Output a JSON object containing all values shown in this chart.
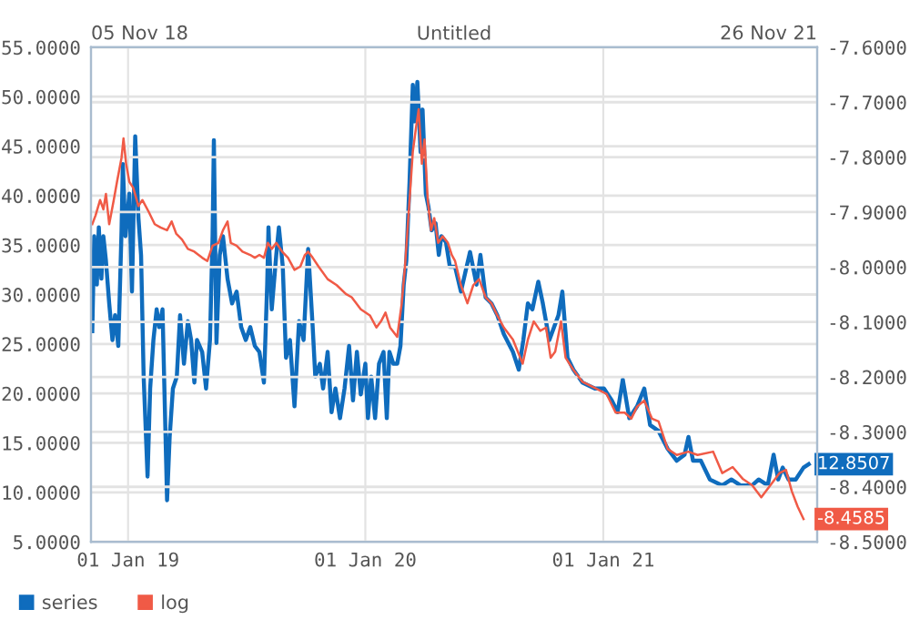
{
  "chart_data": {
    "type": "line",
    "title": "Untitled",
    "annotations": [
      "05 Nov 18",
      "26 Nov 21"
    ],
    "xlim": [
      "2018-11-05",
      "2021-11-26"
    ],
    "xticks": [
      {
        "value": "2019-01-01",
        "label": "01 Jan 19"
      },
      {
        "value": "2020-01-01",
        "label": "01 Jan 20"
      },
      {
        "value": "2021-01-01",
        "label": "01 Jan 21"
      }
    ],
    "ylim": [
      5,
      55
    ],
    "yticks": [
      {
        "value": 5,
        "label": "5.0000"
      },
      {
        "value": 10,
        "label": "10.0000"
      },
      {
        "value": 15,
        "label": "15.0000"
      },
      {
        "value": 20,
        "label": "20.0000"
      },
      {
        "value": 25,
        "label": "25.0000"
      },
      {
        "value": 30,
        "label": "30.0000"
      },
      {
        "value": 35,
        "label": "35.0000"
      },
      {
        "value": 40,
        "label": "40.0000"
      },
      {
        "value": 45,
        "label": "45.0000"
      },
      {
        "value": 50,
        "label": "50.0000"
      },
      {
        "value": 55,
        "label": "55.0000"
      }
    ],
    "y2lim": [
      -8.5,
      -7.6
    ],
    "y2ticks": [
      {
        "value": -8.5,
        "label": "-8.5000"
      },
      {
        "value": -8.4,
        "label": "-8.4000"
      },
      {
        "value": -8.3,
        "label": "-8.3000"
      },
      {
        "value": -8.2,
        "label": "-8.2000"
      },
      {
        "value": -8.1,
        "label": "-8.1000"
      },
      {
        "value": -8.0,
        "label": "-8.0000"
      },
      {
        "value": -7.9,
        "label": "-7.9000"
      },
      {
        "value": -7.8,
        "label": "-7.8000"
      },
      {
        "value": -7.7,
        "label": "-7.7000"
      },
      {
        "value": -7.6,
        "label": "-7.6000"
      }
    ],
    "grid": true,
    "legend": "bottom left",
    "marker": "none",
    "line_style": "solid",
    "series": [
      {
        "name": "series",
        "color": "#0f6cbd",
        "axis": "y",
        "x": [
          "2018-11-07",
          "2018-11-10",
          "2018-11-14",
          "2018-11-17",
          "2018-11-21",
          "2018-11-24",
          "2018-11-28",
          "2018-12-03",
          "2018-12-08",
          "2018-12-12",
          "2018-12-17",
          "2018-12-22",
          "2018-12-24",
          "2018-12-28",
          "2019-01-03",
          "2019-01-07",
          "2019-01-12",
          "2019-01-17",
          "2019-01-21",
          "2019-01-25",
          "2019-01-31",
          "2019-02-04",
          "2019-02-09",
          "2019-02-14",
          "2019-02-18",
          "2019-02-23",
          "2019-03-02",
          "2019-03-06",
          "2019-03-11",
          "2019-03-17",
          "2019-03-22",
          "2019-03-28",
          "2019-04-03",
          "2019-04-08",
          "2019-04-13",
          "2019-04-17",
          "2019-04-25",
          "2019-05-01",
          "2019-05-07",
          "2019-05-11",
          "2019-05-13",
          "2019-05-17",
          "2019-05-22",
          "2019-05-27",
          "2019-06-03",
          "2019-06-10",
          "2019-06-17",
          "2019-06-24",
          "2019-07-01",
          "2019-07-08",
          "2019-07-15",
          "2019-07-22",
          "2019-07-29",
          "2019-08-03",
          "2019-08-05",
          "2019-08-10",
          "2019-08-17",
          "2019-08-21",
          "2019-08-27",
          "2019-09-01",
          "2019-09-07",
          "2019-09-14",
          "2019-09-21",
          "2019-09-28",
          "2019-10-05",
          "2019-10-12",
          "2019-10-16",
          "2019-10-23",
          "2019-10-28",
          "2019-11-04",
          "2019-11-10",
          "2019-11-16",
          "2019-11-23",
          "2019-11-30",
          "2019-12-07",
          "2019-12-13",
          "2019-12-19",
          "2019-12-25",
          "2020-01-01",
          "2020-01-05",
          "2020-01-10",
          "2020-01-16",
          "2020-01-22",
          "2020-01-29",
          "2020-02-03",
          "2020-02-07",
          "2020-02-13",
          "2020-02-19",
          "2020-02-24",
          "2020-02-29",
          "2020-03-04",
          "2020-03-09",
          "2020-03-14",
          "2020-03-17",
          "2020-03-21",
          "2020-03-26",
          "2020-03-29",
          "2020-04-03",
          "2020-04-07",
          "2020-04-12",
          "2020-04-18",
          "2020-04-23",
          "2020-04-27",
          "2020-05-04",
          "2020-05-10",
          "2020-05-18",
          "2020-05-27",
          "2020-06-10",
          "2020-06-20",
          "2020-06-26",
          "2020-07-04",
          "2020-07-13",
          "2020-07-22",
          "2020-08-01",
          "2020-08-15",
          "2020-08-24",
          "2020-08-31",
          "2020-09-07",
          "2020-09-14",
          "2020-09-23",
          "2020-09-30",
          "2020-10-10",
          "2020-10-24",
          "2020-10-30",
          "2020-11-07",
          "2020-11-16",
          "2020-11-30",
          "2020-12-19",
          "2021-01-02",
          "2021-01-14",
          "2021-01-23",
          "2021-01-31",
          "2021-02-10",
          "2021-02-22",
          "2021-03-05",
          "2021-03-14",
          "2021-03-27",
          "2021-04-10",
          "2021-04-24",
          "2021-05-06",
          "2021-05-12",
          "2021-05-19",
          "2021-05-31",
          "2021-06-14",
          "2021-07-03",
          "2021-07-17",
          "2021-07-31",
          "2021-08-18",
          "2021-08-28",
          "2021-09-11",
          "2021-09-20",
          "2021-09-27",
          "2021-10-04",
          "2021-10-13",
          "2021-10-24",
          "2021-11-05",
          "2021-11-13"
        ],
        "values": [
          26.3,
          35.9,
          31,
          36.8,
          31.6,
          35.9,
          33.4,
          29.1,
          25.4,
          27.9,
          24.8,
          36.5,
          43.2,
          35.9,
          40.2,
          30.3,
          46,
          37.7,
          34,
          21.7,
          11.6,
          20.5,
          25.4,
          28.5,
          26.7,
          28.5,
          9.2,
          15.6,
          20.5,
          21.7,
          27.9,
          23,
          27.3,
          25.4,
          21.1,
          25.4,
          24.2,
          20.5,
          25.4,
          35.9,
          45.6,
          25.1,
          34,
          35.9,
          31.6,
          29.1,
          30.3,
          26.7,
          25.4,
          26.7,
          24.8,
          24.2,
          21.1,
          31,
          36.8,
          28.5,
          34,
          36.8,
          32.8,
          23.6,
          25.4,
          18.7,
          27.3,
          25.4,
          34.6,
          26.7,
          21.7,
          23,
          20.5,
          24.2,
          18.1,
          20.5,
          17.5,
          20.5,
          24.8,
          19.3,
          24.2,
          19.9,
          23,
          17.5,
          21.7,
          17.5,
          23,
          24.2,
          17.5,
          24.2,
          23,
          23,
          24.8,
          31,
          33.4,
          41.4,
          51.2,
          47.5,
          51.5,
          44.4,
          48.7,
          40.2,
          38.9,
          36.5,
          37.2,
          34,
          35.9,
          35.3,
          32.8,
          32.8,
          30.3,
          34.3,
          31,
          34,
          29.7,
          29.1,
          27.9,
          26,
          24.2,
          22.4,
          25.4,
          29.1,
          28.5,
          31.3,
          29.1,
          25.4,
          27.9,
          30.3,
          23.6,
          22.4,
          21.1,
          20.5,
          20.5,
          19.3,
          18.1,
          21.4,
          17.5,
          18.7,
          20.5,
          16.8,
          16.2,
          14.4,
          13.2,
          13.8,
          15.6,
          13.2,
          13.2,
          11.3,
          10.7,
          11.3,
          10.7,
          10.7,
          11.3,
          10.7,
          13.8,
          11.3,
          12.5,
          11.3,
          11.3,
          12.5,
          12.8507
        ],
        "value_labels": [
          null,
          null,
          null,
          null,
          null,
          null,
          null,
          null,
          null,
          null,
          null,
          null,
          null,
          null,
          null,
          null,
          null,
          null,
          null,
          null,
          null,
          null,
          null,
          null,
          null,
          null,
          null,
          null,
          null,
          null,
          null,
          null,
          null,
          null,
          null,
          null,
          null,
          null,
          null,
          null,
          null,
          null,
          null,
          null,
          null,
          null,
          null,
          null,
          null,
          null,
          null,
          null,
          null,
          null,
          null,
          null,
          null,
          null,
          null,
          null,
          null,
          null,
          null,
          null,
          null,
          null,
          null,
          null,
          null,
          null,
          null,
          null,
          null,
          null,
          null,
          null,
          null,
          null,
          null,
          null,
          null,
          null,
          null,
          null,
          null,
          null,
          null,
          null,
          null,
          null,
          null,
          null,
          null,
          null,
          null,
          null,
          null,
          null,
          null,
          null,
          null,
          null,
          null,
          null,
          null,
          null,
          null,
          null,
          null,
          null,
          null,
          null,
          null,
          null,
          null,
          null,
          null,
          null,
          null,
          null,
          null,
          null,
          null,
          null,
          null,
          null,
          null,
          null,
          null,
          null,
          null,
          null,
          null,
          null,
          null,
          null,
          null,
          null,
          null,
          null,
          null,
          null,
          null,
          null,
          null,
          null,
          null,
          null,
          null,
          null,
          null,
          null,
          null,
          null,
          null,
          null,
          "12.8507"
        ]
      },
      {
        "name": "log",
        "color": "#f05a46",
        "axis": "y2",
        "x": [
          "2018-11-07",
          "2018-11-12",
          "2018-11-19",
          "2018-11-24",
          "2018-11-28",
          "2018-12-03",
          "2018-12-10",
          "2018-12-15",
          "2018-12-22",
          "2018-12-25",
          "2018-12-29",
          "2019-01-03",
          "2019-01-09",
          "2019-01-17",
          "2019-01-23",
          "2019-02-02",
          "2019-02-11",
          "2019-02-20",
          "2019-03-02",
          "2019-03-09",
          "2019-03-16",
          "2019-03-25",
          "2019-04-03",
          "2019-04-13",
          "2019-04-25",
          "2019-05-03",
          "2019-05-11",
          "2019-05-20",
          "2019-05-27",
          "2019-06-03",
          "2019-06-08",
          "2019-06-17",
          "2019-06-26",
          "2019-07-08",
          "2019-07-15",
          "2019-07-22",
          "2019-07-29",
          "2019-08-04",
          "2019-08-10",
          "2019-08-17",
          "2019-08-26",
          "2019-09-04",
          "2019-09-14",
          "2019-09-23",
          "2019-09-30",
          "2019-10-05",
          "2019-10-12",
          "2019-10-21",
          "2019-11-04",
          "2019-11-18",
          "2019-12-02",
          "2019-12-11",
          "2019-12-25",
          "2020-01-08",
          "2020-01-18",
          "2020-01-25",
          "2020-02-01",
          "2020-02-08",
          "2020-02-19",
          "2020-02-26",
          "2020-03-02",
          "2020-03-09",
          "2020-03-14",
          "2020-03-19",
          "2020-03-23",
          "2020-03-28",
          "2020-04-01",
          "2020-04-06",
          "2020-04-11",
          "2020-04-16",
          "2020-04-22",
          "2020-04-29",
          "2020-05-07",
          "2020-05-13",
          "2020-05-18",
          "2020-05-27",
          "2020-06-06",
          "2020-06-15",
          "2020-06-24",
          "2020-07-04",
          "2020-07-13",
          "2020-07-22",
          "2020-08-01",
          "2020-08-15",
          "2020-08-30",
          "2020-09-07",
          "2020-09-16",
          "2020-09-26",
          "2020-10-05",
          "2020-10-12",
          "2020-10-19",
          "2020-10-28",
          "2020-11-04",
          "2020-11-16",
          "2020-11-30",
          "2020-12-19",
          "2021-01-06",
          "2021-01-20",
          "2021-02-03",
          "2021-02-13",
          "2021-02-22",
          "2021-03-05",
          "2021-03-17",
          "2021-03-27",
          "2021-04-10",
          "2021-04-24",
          "2021-05-12",
          "2021-05-26",
          "2021-06-19",
          "2021-07-03",
          "2021-07-19",
          "2021-08-04",
          "2021-08-18",
          "2021-09-01",
          "2021-09-15",
          "2021-09-29",
          "2021-10-09",
          "2021-10-18",
          "2021-10-27",
          "2021-11-05"
        ],
        "values": [
          -7.922,
          -7.906,
          -7.878,
          -7.895,
          -7.867,
          -7.922,
          -7.878,
          -7.845,
          -7.801,
          -7.766,
          -7.812,
          -7.845,
          -7.856,
          -7.889,
          -7.878,
          -7.9,
          -7.922,
          -7.928,
          -7.933,
          -7.917,
          -7.939,
          -7.95,
          -7.967,
          -7.972,
          -7.983,
          -7.989,
          -7.961,
          -7.956,
          -7.933,
          -7.917,
          -7.956,
          -7.961,
          -7.972,
          -7.978,
          -7.983,
          -7.978,
          -7.983,
          -7.956,
          -7.967,
          -7.956,
          -7.972,
          -7.983,
          -8.005,
          -7.999,
          -7.978,
          -7.972,
          -7.983,
          -7.999,
          -8.022,
          -8.033,
          -8.049,
          -8.055,
          -8.077,
          -8.088,
          -8.11,
          -8.099,
          -8.083,
          -8.11,
          -8.127,
          -8.066,
          -7.999,
          -7.878,
          -7.79,
          -7.746,
          -7.713,
          -7.812,
          -7.768,
          -7.878,
          -7.933,
          -7.911,
          -7.956,
          -7.944,
          -7.956,
          -7.978,
          -7.989,
          -8.033,
          -8.066,
          -8.033,
          -8.022,
          -8.055,
          -8.066,
          -8.088,
          -8.11,
          -8.132,
          -8.176,
          -8.132,
          -8.099,
          -8.116,
          -8.11,
          -8.165,
          -8.154,
          -8.099,
          -8.165,
          -8.187,
          -8.209,
          -8.22,
          -8.231,
          -8.265,
          -8.265,
          -8.276,
          -8.254,
          -8.243,
          -8.276,
          -8.281,
          -8.331,
          -8.342,
          -8.336,
          -8.342,
          -8.336,
          -8.375,
          -8.364,
          -8.386,
          -8.397,
          -8.419,
          -8.397,
          -8.375,
          -8.369,
          -8.408,
          -8.436,
          -8.4585
        ],
        "value_labels": [
          null,
          null,
          null,
          null,
          null,
          null,
          null,
          null,
          null,
          null,
          null,
          null,
          null,
          null,
          null,
          null,
          null,
          null,
          null,
          null,
          null,
          null,
          null,
          null,
          null,
          null,
          null,
          null,
          null,
          null,
          null,
          null,
          null,
          null,
          null,
          null,
          null,
          null,
          null,
          null,
          null,
          null,
          null,
          null,
          null,
          null,
          null,
          null,
          null,
          null,
          null,
          null,
          null,
          null,
          null,
          null,
          null,
          null,
          null,
          null,
          null,
          null,
          null,
          null,
          null,
          null,
          null,
          null,
          null,
          null,
          null,
          null,
          null,
          null,
          null,
          null,
          null,
          null,
          null,
          null,
          null,
          null,
          null,
          null,
          null,
          null,
          null,
          null,
          null,
          null,
          null,
          null,
          null,
          null,
          null,
          null,
          null,
          null,
          null,
          null,
          null,
          null,
          null,
          null,
          null,
          null,
          null,
          null,
          null,
          null,
          null,
          null,
          null,
          null,
          null,
          null,
          null,
          null,
          null,
          "-8.4585"
        ]
      }
    ]
  }
}
